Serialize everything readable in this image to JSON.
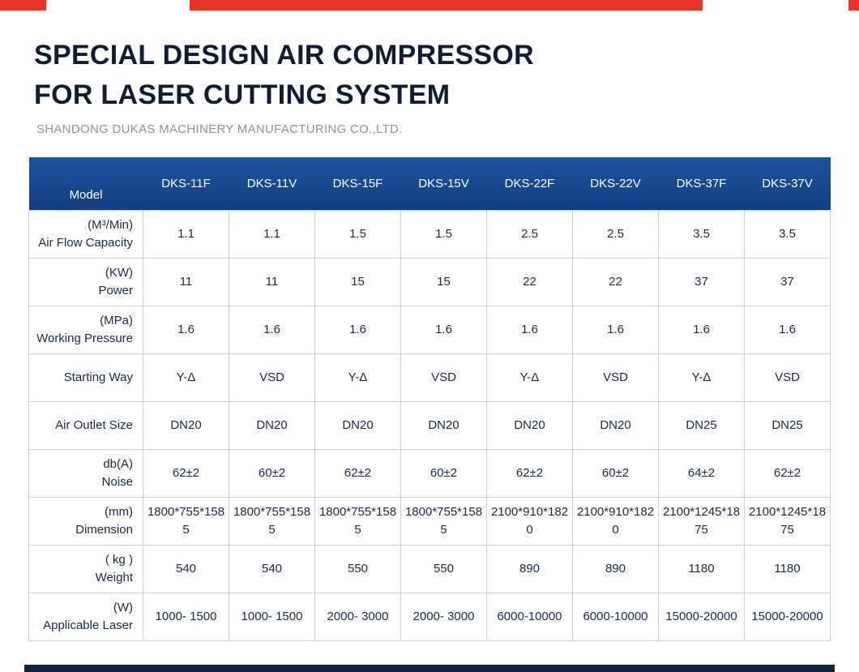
{
  "colors": {
    "brand_red": "#e63429",
    "table_header_blue": "#17478c",
    "title_navy": "#0f1c33",
    "bottom_bar_navy": "#15223f",
    "cell_border": "#c9cfd9",
    "body_text_navy": "#1c2b45",
    "subtitle_gray": "#8f9399"
  },
  "header": {
    "title_line1": "SPECIAL DESIGN AIR COMPRESSOR",
    "title_line2": "FOR LASER CUTTING SYSTEM",
    "company": "SHANDONG DUKAS MACHINERY MANUFACTURING CO.,LTD."
  },
  "table": {
    "columns": [
      "Model",
      "DKS-11F",
      "DKS-11V",
      "DKS-15F",
      "DKS-15V",
      "DKS-22F",
      "DKS-22V",
      "DKS-37F",
      "DKS-37V"
    ],
    "rows": [
      {
        "unit": "(M³/Min)",
        "label": "Air Flow Capacity",
        "values": [
          "1.1",
          "1.1",
          "1.5",
          "1.5",
          "2.5",
          "2.5",
          "3.5",
          "3.5"
        ]
      },
      {
        "unit": "(KW)",
        "label": "Power",
        "values": [
          "11",
          "11",
          "15",
          "15",
          "22",
          "22",
          "37",
          "37"
        ]
      },
      {
        "unit": "(MPa)",
        "label": "Working Pressure",
        "values": [
          "1.6",
          "1.6",
          "1.6",
          "1.6",
          "1.6",
          "1.6",
          "1.6",
          "1.6"
        ]
      },
      {
        "unit": "",
        "label": "Starting Way",
        "values": [
          "Y-Δ",
          "VSD",
          "Y-Δ",
          "VSD",
          "Y-Δ",
          "VSD",
          "Y-Δ",
          "VSD"
        ]
      },
      {
        "unit": "",
        "label": "Air Outlet Size",
        "values": [
          "DN20",
          "DN20",
          "DN20",
          "DN20",
          "DN20",
          "DN20",
          "DN25",
          "DN25"
        ]
      },
      {
        "unit": "db(A)",
        "label": "Noise",
        "values": [
          "62±2",
          "60±2",
          "62±2",
          "60±2",
          "62±2",
          "60±2",
          "64±2",
          "62±2"
        ]
      },
      {
        "unit": "(mm)",
        "label": "Dimension",
        "values": [
          "1800*755*1585",
          "1800*755*1585",
          "1800*755*1585",
          "1800*755*1585",
          "2100*910*1820",
          "2100*910*1820",
          "2100*1245*1875",
          "2100*1245*1875"
        ]
      },
      {
        "unit": "( kg )",
        "label": "Weight",
        "values": [
          "540",
          "540",
          "550",
          "550",
          "890",
          "890",
          "1180",
          "1180"
        ]
      },
      {
        "unit": "(W)",
        "label": "Applicable Laser",
        "values": [
          "1000- 1500",
          "1000- 1500",
          "2000- 3000",
          "2000- 3000",
          "6000-10000",
          "6000-10000",
          "15000-20000",
          "15000-20000"
        ]
      }
    ]
  }
}
